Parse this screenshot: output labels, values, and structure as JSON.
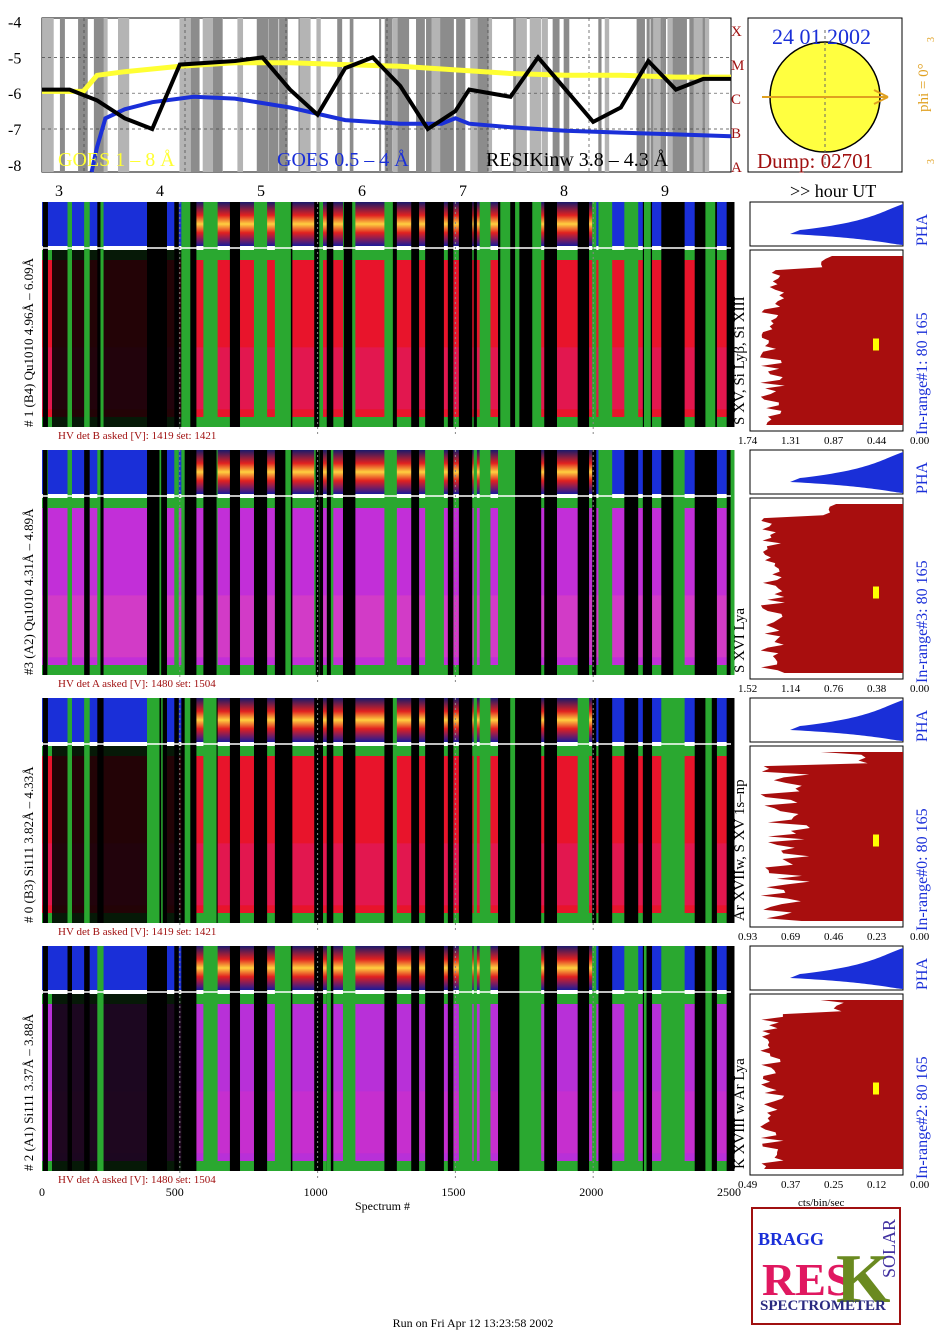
{
  "header": {
    "date": "24 01 2002",
    "dump": "Dump: 02701",
    "phi": "phi = 0°",
    "phi_side_top": "3",
    "phi_side_bottom": "3",
    "flare_classes": [
      "A",
      "B",
      "C",
      "M",
      "X"
    ],
    "hour_label": ">> hour UT"
  },
  "goes": {
    "y_ticks": [
      "-4",
      "-5",
      "-6",
      "-7",
      "-8"
    ],
    "ylim": [
      -8.2,
      -3.9
    ],
    "hour_ticks": [
      "3",
      "4",
      "5",
      "6",
      "7",
      "8",
      "9"
    ],
    "legend": {
      "goes_long": "GOES 1 – 8 Å",
      "goes_short": "GOES 0.5 – 4 Å",
      "resik": "RESIKinw 3.8 – 4.3 Å"
    },
    "colors": {
      "long": "#ffff33",
      "short": "#1a2fd8",
      "resik": "#000000"
    },
    "series_long": [
      [
        0,
        -5.95
      ],
      [
        150,
        -5.95
      ],
      [
        200,
        -5.5
      ],
      [
        300,
        -5.4
      ],
      [
        500,
        -5.25
      ],
      [
        700,
        -5.15
      ],
      [
        900,
        -5.15
      ],
      [
        1100,
        -5.2
      ],
      [
        1300,
        -5.25
      ],
      [
        1500,
        -5.35
      ],
      [
        1700,
        -5.45
      ],
      [
        1900,
        -5.5
      ],
      [
        2100,
        -5.5
      ],
      [
        2300,
        -5.55
      ],
      [
        2500,
        -5.55
      ]
    ],
    "series_short": [
      [
        180,
        -8.2
      ],
      [
        200,
        -7.5
      ],
      [
        230,
        -6.7
      ],
      [
        300,
        -6.45
      ],
      [
        400,
        -6.25
      ],
      [
        550,
        -6.1
      ],
      [
        700,
        -6.15
      ],
      [
        900,
        -6.4
      ],
      [
        1100,
        -6.75
      ],
      [
        1300,
        -6.85
      ],
      [
        1450,
        -6.85
      ],
      [
        1500,
        -6.7
      ],
      [
        1550,
        -6.85
      ],
      [
        1700,
        -6.95
      ],
      [
        1900,
        -7.05
      ],
      [
        2100,
        -7.1
      ],
      [
        2300,
        -7.15
      ],
      [
        2500,
        -7.2
      ]
    ],
    "series_resik": [
      [
        0,
        -5.9
      ],
      [
        100,
        -5.9
      ],
      [
        200,
        -6.2
      ],
      [
        300,
        -6.7
      ],
      [
        400,
        -7.0
      ],
      [
        500,
        -5.2
      ],
      [
        700,
        -5.1
      ],
      [
        800,
        -5.0
      ],
      [
        900,
        -5.9
      ],
      [
        1000,
        -6.6
      ],
      [
        1100,
        -5.3
      ],
      [
        1200,
        -5.0
      ],
      [
        1300,
        -5.8
      ],
      [
        1400,
        -7.0
      ],
      [
        1500,
        -6.5
      ],
      [
        1550,
        -5.9
      ],
      [
        1700,
        -6.1
      ],
      [
        1800,
        -5.0
      ],
      [
        1900,
        -5.9
      ],
      [
        2000,
        -6.8
      ],
      [
        2100,
        -6.4
      ],
      [
        2200,
        -5.1
      ],
      [
        2300,
        -5.9
      ],
      [
        2400,
        -5.6
      ],
      [
        2500,
        -5.6
      ]
    ]
  },
  "detectors": [
    {
      "label": "# 1 (B4) Qu1010 4.96Å – 6.09Å",
      "hv": "HV det B asked [V]:  1419 set:  1421",
      "line_id": "S XV, Si Lyβ, Si XIII",
      "in_range": "In-range#1:   80 165",
      "pha": "PHA",
      "hist_ticks": [
        "1.74",
        "1.31",
        "0.87",
        "0.44",
        "0.00"
      ],
      "spec_style": "red"
    },
    {
      "label": "#3 (A2) Qu1010  4.31Å – 4.89Å",
      "hv": "HV det A asked [V]:  1480 set:  1504",
      "line_id": "S XVI Lya",
      "in_range": "In-range#3:   80 165",
      "pha": "PHA",
      "hist_ticks": [
        "1.52",
        "1.14",
        "0.76",
        "0.38",
        "0.00"
      ],
      "spec_style": "violet"
    },
    {
      "label": "# 0 (B3) Si111  3.82Å – 4.33Å",
      "hv": "HV det B asked [V]:  1419 set:  1421",
      "line_id": "Ar XVIIw,  S XV 1s–np",
      "in_range": "In-range#0:   80 165",
      "pha": "PHA",
      "hist_ticks": [
        "0.93",
        "0.69",
        "0.46",
        "0.23",
        "0.00"
      ],
      "spec_style": "red"
    },
    {
      "label": "# 2 (A1) Si111  3.37Å – 3.88Å",
      "hv": "HV det A asked [V]:  1480 set:  1504",
      "line_id": "K XVIII w  Ar Lya",
      "in_range": "In-range#2:   80 165",
      "pha": "PHA",
      "hist_ticks": [
        "0.49",
        "0.37",
        "0.25",
        "0.12",
        "0.00"
      ],
      "spec_style": "violet2"
    }
  ],
  "axis": {
    "spectrum_ticks": [
      "0",
      "500",
      "1000",
      "1500",
      "2000",
      "2500"
    ],
    "spectrum_label": "Spectrum #",
    "hist_label": "cts/bin/sec"
  },
  "logo": {
    "text": "SPECTROMETER",
    "letters": "BRAGG RESIK SOLAR"
  },
  "footer": "Run on Fri Apr 12 13:23:58 2002"
}
